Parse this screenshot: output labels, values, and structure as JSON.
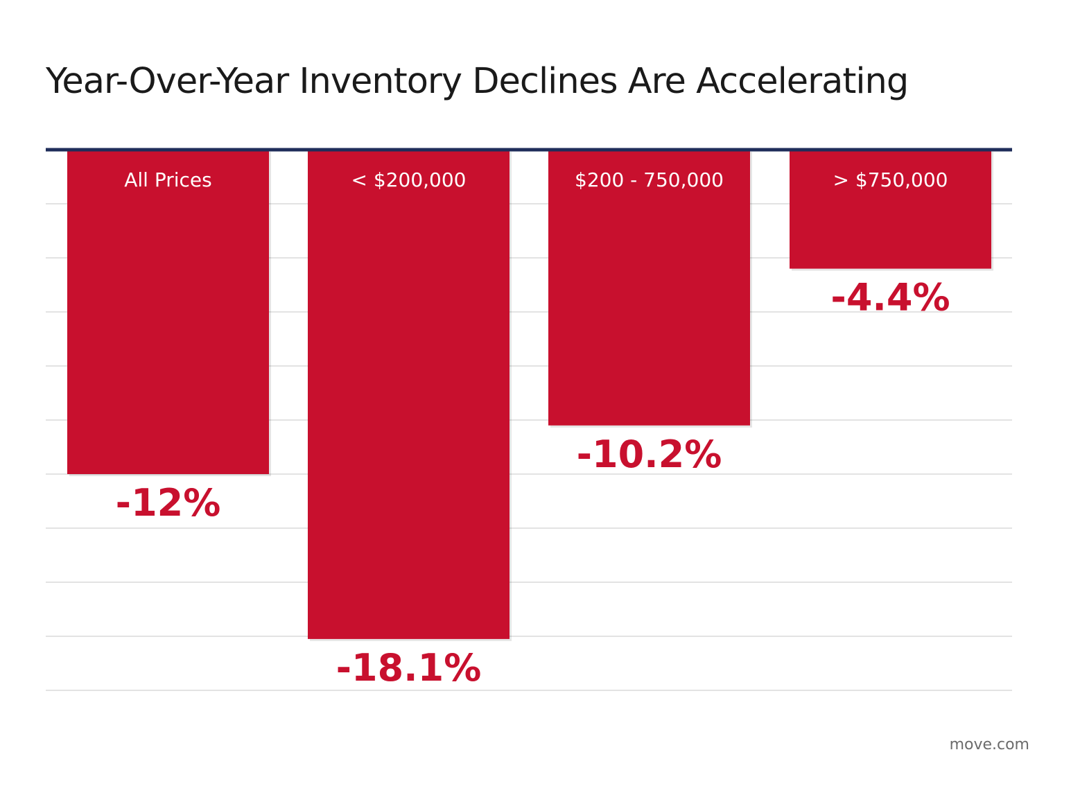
{
  "chart_data": {
    "type": "bar",
    "title": "Year-Over-Year Inventory Declines Are Accelerating",
    "categories": [
      "All Prices",
      "< $200,000",
      "$200 - 750,000",
      "> $750,000"
    ],
    "values": [
      -12,
      -18.1,
      -10.2,
      -4.4
    ],
    "value_labels": [
      "-12%",
      "-18.1%",
      "-10.2%",
      "-4.4%"
    ],
    "ylim": [
      -20,
      0
    ],
    "grid": true,
    "bar_color": "#c8102e",
    "axis_line_color": "#1f2d5a",
    "gridline_color": "#e3e3e3",
    "label_color": "#c8102e"
  },
  "source": "move.com"
}
